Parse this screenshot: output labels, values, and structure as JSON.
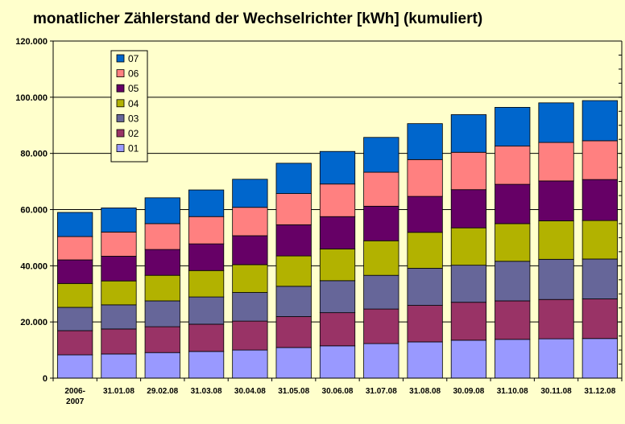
{
  "chart_data": {
    "type": "bar",
    "stacked": true,
    "title": "monatlicher Zählerstand der Wechselrichter [kWh] (kumuliert)",
    "xlabel": "",
    "ylabel": "",
    "ylim": [
      0,
      120000
    ],
    "yticks": [
      0,
      20000,
      40000,
      60000,
      80000,
      100000,
      120000
    ],
    "ytick_labels": [
      "0",
      "20.000",
      "40.000",
      "60.000",
      "80.000",
      "100.000",
      "120.000"
    ],
    "grid": true,
    "legend_position": "top-left",
    "categories": [
      [
        "2006-",
        "2007"
      ],
      [
        "31.01.08"
      ],
      [
        "29.02.08"
      ],
      [
        "31.03.08"
      ],
      [
        "30.04.08"
      ],
      [
        "31.05.08"
      ],
      [
        "30.06.08"
      ],
      [
        "31.07.08"
      ],
      [
        "31.08.08"
      ],
      [
        "30.09.08"
      ],
      [
        "31.10.08"
      ],
      [
        "30.11.08"
      ],
      [
        "31.12.08"
      ]
    ],
    "series": [
      {
        "name": "01",
        "color": "#9999FF",
        "values": [
          8300,
          8600,
          9100,
          9500,
          10000,
          10900,
          11500,
          12300,
          12900,
          13500,
          13800,
          14000,
          14100
        ]
      },
      {
        "name": "02",
        "color": "#993366",
        "values": [
          8600,
          8900,
          9200,
          9700,
          10300,
          11000,
          11800,
          12300,
          13000,
          13500,
          13700,
          14000,
          14100
        ]
      },
      {
        "name": "03",
        "color": "#666699",
        "values": [
          8300,
          8600,
          9200,
          9700,
          10200,
          10800,
          11400,
          12000,
          13200,
          13200,
          14100,
          14300,
          14200
        ]
      },
      {
        "name": "04",
        "color": "#B2B200",
        "values": [
          8500,
          8500,
          9100,
          9400,
          9900,
          10800,
          11300,
          12300,
          12800,
          13300,
          13400,
          13700,
          13700
        ]
      },
      {
        "name": "05",
        "color": "#660066",
        "values": [
          8400,
          8800,
          9200,
          9500,
          10300,
          11100,
          11500,
          12300,
          12800,
          13600,
          14000,
          14200,
          14600
        ]
      },
      {
        "name": "06",
        "color": "#FF8080",
        "values": [
          8300,
          8600,
          9200,
          9700,
          10100,
          11100,
          11600,
          12100,
          13100,
          13300,
          13600,
          13700,
          13800
        ]
      },
      {
        "name": "07",
        "color": "#0066CC",
        "values": [
          8600,
          8600,
          9200,
          9500,
          10000,
          10800,
          11600,
          12400,
          12800,
          13400,
          13800,
          14100,
          14300
        ]
      }
    ]
  }
}
